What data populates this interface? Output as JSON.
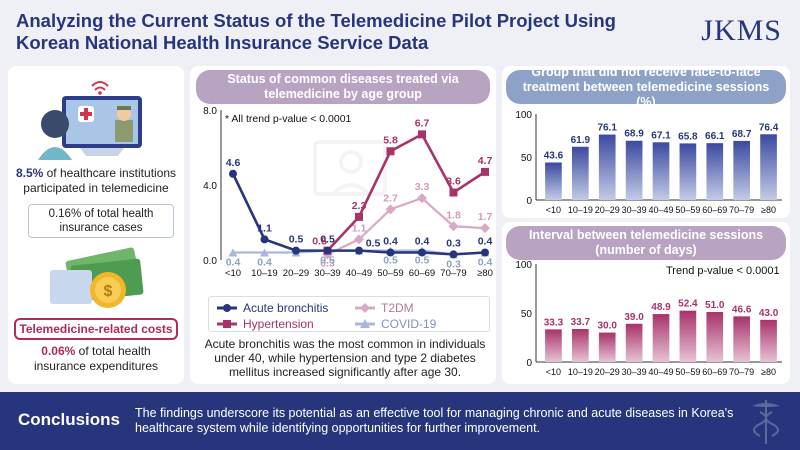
{
  "header": {
    "title_line1": "Analyzing the Current Status of the Telemedicine Pilot Project Using",
    "title_line2": "Korean National Health Insurance Service Data",
    "logo": "JKMS"
  },
  "left": {
    "stat1_value": "8.5%",
    "stat1_text": " of healthcare institutions participated in telemedicine",
    "stat2_text": "0.16% of total health insurance cases",
    "cost_tag": "Telemedicine-related costs",
    "stat3_value": "0.06%",
    "stat3_text": " of total health insurance expenditures"
  },
  "middle": {
    "title": "Status of common diseases treated via telemedicine by age group",
    "note": "* All trend p-value < 0.0001",
    "caption": "Acute bronchitis was the most common in individuals under 40, while hypertension and type 2 diabetes mellitus increased significantly after age 30."
  },
  "right_top": {
    "title": "Group that did not receive face-to-face treatment between telemedicine sessions (%)"
  },
  "right_bottom": {
    "title": "Interval between telemedicine sessions (number of days)",
    "note": "Trend p-value < 0.0001"
  },
  "footer": {
    "title": "Conclusions",
    "text": "The findings underscore its potential as an effective tool for managing chronic and acute diseases in Korea's healthcare system while identifying opportunities for further improvement."
  },
  "colors": {
    "navy": "#27367c",
    "acute_bronchitis": "#27367c",
    "hypertension": "#a8326a",
    "t2dm": "#d8a9c6",
    "covid19": "#a9b7dc"
  },
  "chart_data": [
    {
      "type": "line",
      "categories": [
        "<10",
        "10–19",
        "20–29",
        "30–39",
        "40–49",
        "50–59",
        "60–69",
        "70–79",
        "≥80"
      ],
      "ylim": [
        0,
        8
      ],
      "yticks": [
        "0.0",
        "4.0",
        "8.0"
      ],
      "series": [
        {
          "name": "Acute bronchitis",
          "values": [
            4.6,
            1.1,
            0.5,
            0.5,
            0.5,
            0.4,
            0.4,
            0.3,
            0.4
          ],
          "labels": [
            "4.6",
            "1.1",
            "0.5",
            "0.5",
            "0.5",
            "0.4",
            "0.4",
            "0.3",
            "0.4"
          ]
        },
        {
          "name": "Hypertension",
          "values": [
            null,
            null,
            null,
            0.5,
            2.3,
            5.8,
            6.7,
            3.6,
            4.7
          ],
          "labels": [
            "",
            "",
            "",
            "0.5",
            "2.3",
            "5.8",
            "6.7",
            "3.6",
            "4.7"
          ]
        },
        {
          "name": "T2DM",
          "values": [
            null,
            null,
            null,
            0.3,
            1.1,
            2.7,
            3.3,
            1.8,
            1.7
          ],
          "labels": [
            "",
            "",
            "",
            "0.3",
            "1.1",
            "2.7",
            "3.3",
            "1.8",
            "1.7"
          ]
        },
        {
          "name": "COVID-19",
          "values": [
            0.4,
            0.4,
            0.4,
            0.5,
            0.5,
            0.5,
            0.5,
            0.3,
            0.4
          ],
          "labels": [
            "0.4",
            "0.4",
            "",
            "0.5",
            "",
            "0.5",
            "0.5",
            "0.3",
            "0.4"
          ]
        }
      ]
    },
    {
      "type": "bar",
      "categories": [
        "<10",
        "10–19",
        "20–29",
        "30–39",
        "40–49",
        "50–59",
        "60–69",
        "70–79",
        "≥80"
      ],
      "values": [
        43.6,
        61.9,
        76.1,
        68.9,
        67.1,
        65.8,
        66.1,
        68.7,
        76.4
      ],
      "ylim": [
        0,
        100
      ],
      "yticks": [
        "0",
        "50",
        "100"
      ]
    },
    {
      "type": "bar",
      "categories": [
        "<10",
        "10–19",
        "20–29",
        "30–39",
        "40–49",
        "50–59",
        "60–69",
        "70–79",
        "≥80"
      ],
      "values": [
        33.3,
        33.7,
        30.0,
        39.0,
        48.9,
        52.4,
        51.0,
        46.6,
        43.0
      ],
      "value_labels": [
        "33.3",
        "33.7",
        "30.0",
        "39.0",
        "48.9",
        "52.4",
        "51.0",
        "46.6",
        "43.0"
      ],
      "ylim": [
        0,
        100
      ],
      "yticks": [
        "0",
        "50",
        "100"
      ]
    }
  ]
}
